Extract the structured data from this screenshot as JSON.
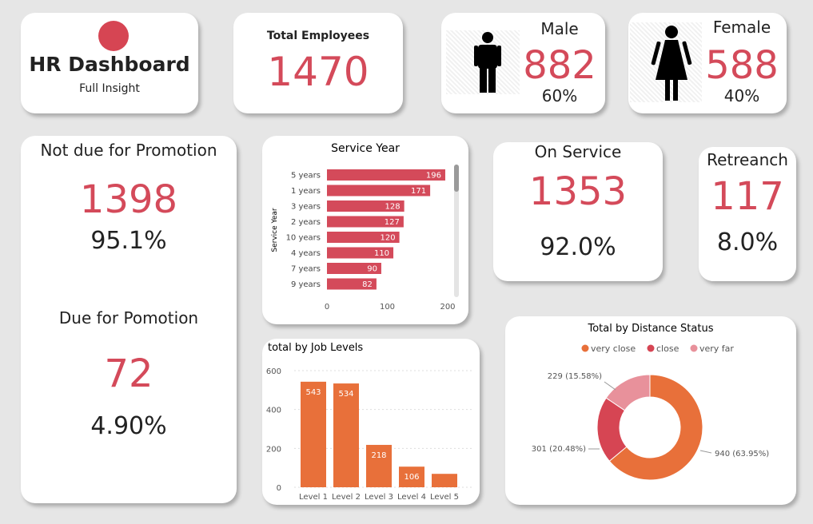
{
  "header": {
    "title": "HR Dashboard",
    "subtitle": "Full Insight"
  },
  "kpis": {
    "total": {
      "label": "Total Employees",
      "value": "1470"
    },
    "male": {
      "label": "Male",
      "value": "882",
      "pct": "60%",
      "icon": "male-person-icon"
    },
    "female": {
      "label": "Female",
      "value": "588",
      "pct": "40%",
      "icon": "female-person-icon"
    },
    "promotion": {
      "not_due_label": "Not due for Promotion",
      "not_due_value": "1398",
      "not_due_pct": "95.1%",
      "due_label": "Due for Pomotion",
      "due_value": "72",
      "due_pct": "4.90%"
    },
    "on_service": {
      "label": "On Service",
      "value": "1353",
      "pct": "92.0%"
    },
    "retrench": {
      "label": "Retreanch",
      "value": "117",
      "pct": "8.0%"
    }
  },
  "colors": {
    "red": "#d44a5a",
    "orange": "#e8703a",
    "pink": "#e8919b",
    "darkred": "#d64553"
  },
  "chart_data": [
    {
      "type": "bar",
      "orientation": "horizontal",
      "title": "Service Year",
      "ylabel": "Service Year",
      "xlabel": "",
      "categories": [
        "5 years",
        "1 years",
        "3 years",
        "2 years",
        "10 years",
        "4 years",
        "7 years",
        "9 years"
      ],
      "values": [
        196,
        171,
        128,
        127,
        120,
        110,
        90,
        82
      ],
      "xlim": [
        0,
        200
      ],
      "xticks": [
        "0",
        "100",
        "200"
      ],
      "color": "#d44a5a"
    },
    {
      "type": "bar",
      "title": "total by Job Levels",
      "categories": [
        "Level 1",
        "Level 2",
        "Level 3",
        "Level 4",
        "Level 5"
      ],
      "values": [
        543,
        534,
        218,
        106,
        69
      ],
      "labels": [
        "543",
        "534",
        "218",
        "106",
        ""
      ],
      "ylim": [
        0,
        600
      ],
      "yticks": [
        "0",
        "200",
        "400",
        "600"
      ],
      "color": "#e8703a"
    },
    {
      "type": "pie",
      "title": "Total by Distance Status",
      "legend": [
        "very close",
        "close",
        "very far"
      ],
      "values": [
        940,
        301,
        229
      ],
      "labels": [
        "940 (63.95%)",
        "301 (20.48%)",
        "229 (15.58%)"
      ],
      "colors": [
        "#e8703a",
        "#d64553",
        "#e8919b"
      ]
    }
  ]
}
